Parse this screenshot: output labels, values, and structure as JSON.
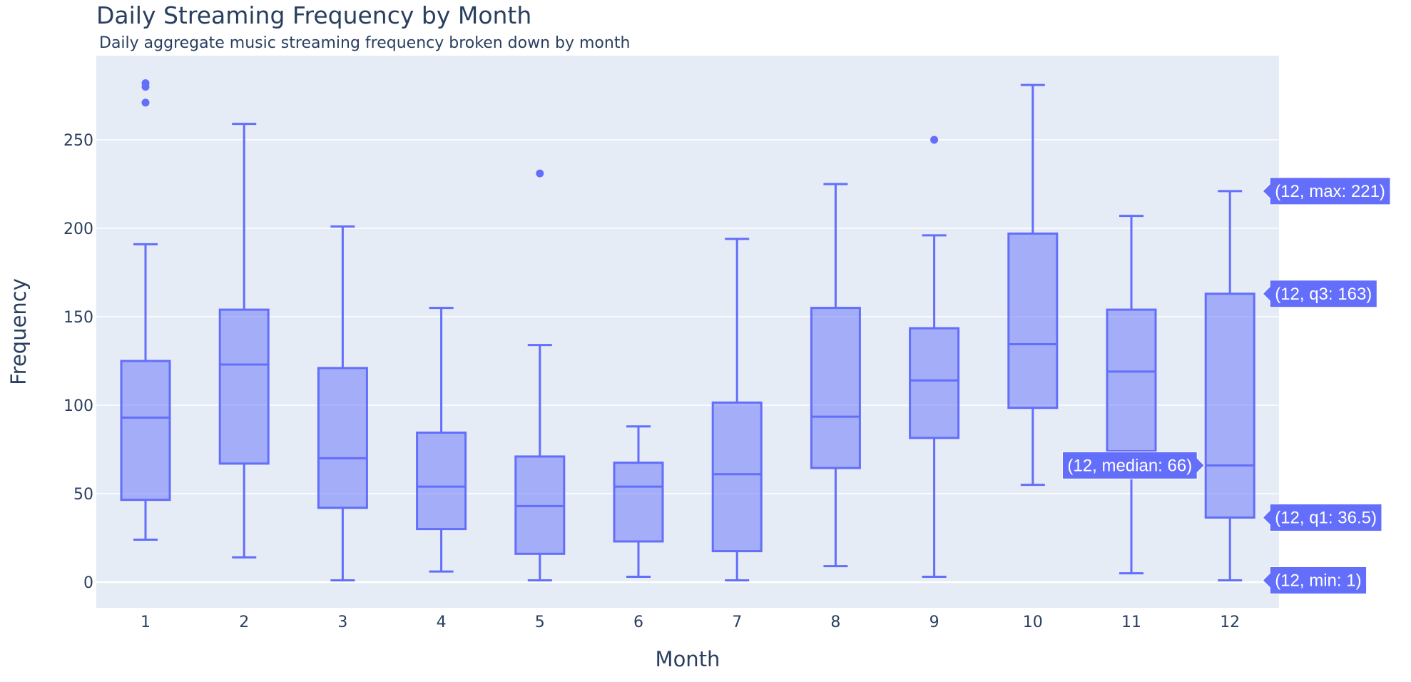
{
  "chart_data": {
    "type": "box",
    "title": "Daily Streaming Frequency by Month",
    "subtitle": "Daily aggregate music streaming frequency broken down by month",
    "xlabel": "Month",
    "ylabel": "Frequency",
    "categories": [
      "1",
      "2",
      "3",
      "4",
      "5",
      "6",
      "7",
      "8",
      "9",
      "10",
      "11",
      "12"
    ],
    "ylim": [
      -15,
      295
    ],
    "yticks": [
      0,
      50,
      100,
      150,
      200,
      250
    ],
    "grid": true,
    "colors": {
      "box": "#636efa",
      "fill": "rgba(99,110,250,0.5)",
      "plot_bg": "#e5ecf6",
      "label_bg": "#636efa"
    },
    "boxes": [
      {
        "x": "1",
        "min": 24,
        "q1": 46.5,
        "median": 93,
        "q3": 125,
        "max": 191,
        "outliers": [
          271,
          280,
          282
        ]
      },
      {
        "x": "2",
        "min": 14,
        "q1": 67,
        "median": 123,
        "q3": 154,
        "max": 259,
        "outliers": []
      },
      {
        "x": "3",
        "min": 1,
        "q1": 42,
        "median": 70,
        "q3": 121,
        "max": 201,
        "outliers": []
      },
      {
        "x": "4",
        "min": 6,
        "q1": 30,
        "median": 54,
        "q3": 84.5,
        "max": 155,
        "outliers": []
      },
      {
        "x": "5",
        "min": 1,
        "q1": 16,
        "median": 43,
        "q3": 71,
        "max": 134,
        "outliers": [
          231
        ]
      },
      {
        "x": "6",
        "min": 3,
        "q1": 23,
        "median": 54,
        "q3": 67.5,
        "max": 88,
        "outliers": []
      },
      {
        "x": "7",
        "min": 1,
        "q1": 17.5,
        "median": 61,
        "q3": 101.5,
        "max": 194,
        "outliers": []
      },
      {
        "x": "8",
        "min": 9,
        "q1": 64.5,
        "median": 93.5,
        "q3": 155,
        "max": 225,
        "outliers": []
      },
      {
        "x": "9",
        "min": 3,
        "q1": 81.5,
        "median": 114,
        "q3": 143.5,
        "max": 196,
        "outliers": [
          250
        ]
      },
      {
        "x": "10",
        "min": 55,
        "q1": 98.5,
        "median": 134.5,
        "q3": 197,
        "max": 281,
        "outliers": []
      },
      {
        "x": "11",
        "min": 5,
        "q1": 74,
        "median": 119,
        "q3": 154,
        "max": 207,
        "outliers": []
      },
      {
        "x": "12",
        "min": 1,
        "q1": 36.5,
        "median": 66,
        "q3": 163,
        "max": 221,
        "outliers": []
      }
    ],
    "hover_labels": [
      {
        "text": "(12, max: 221)",
        "value": 221,
        "side": "right"
      },
      {
        "text": "(12, q3: 163)",
        "value": 163,
        "side": "right"
      },
      {
        "text": "(12, median: 66)",
        "value": 66,
        "side": "left"
      },
      {
        "text": "(12, q1: 36.5)",
        "value": 36.5,
        "side": "right"
      },
      {
        "text": "(12, min: 1)",
        "value": 1,
        "side": "right"
      }
    ]
  }
}
